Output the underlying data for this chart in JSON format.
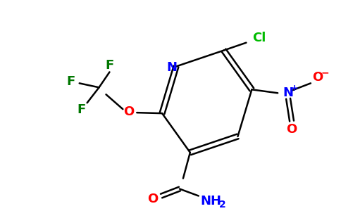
{
  "background_color": "#ffffff",
  "figure_width": 4.84,
  "figure_height": 3.0,
  "dpi": 100,
  "atom_colors": {
    "N": "#0000ff",
    "O": "#ff0000",
    "Cl": "#00bb00",
    "F": "#007700",
    "C": "#000000"
  },
  "bond_color": "#000000",
  "bond_lw": 1.8,
  "font_size": 13,
  "font_size_sub": 10
}
